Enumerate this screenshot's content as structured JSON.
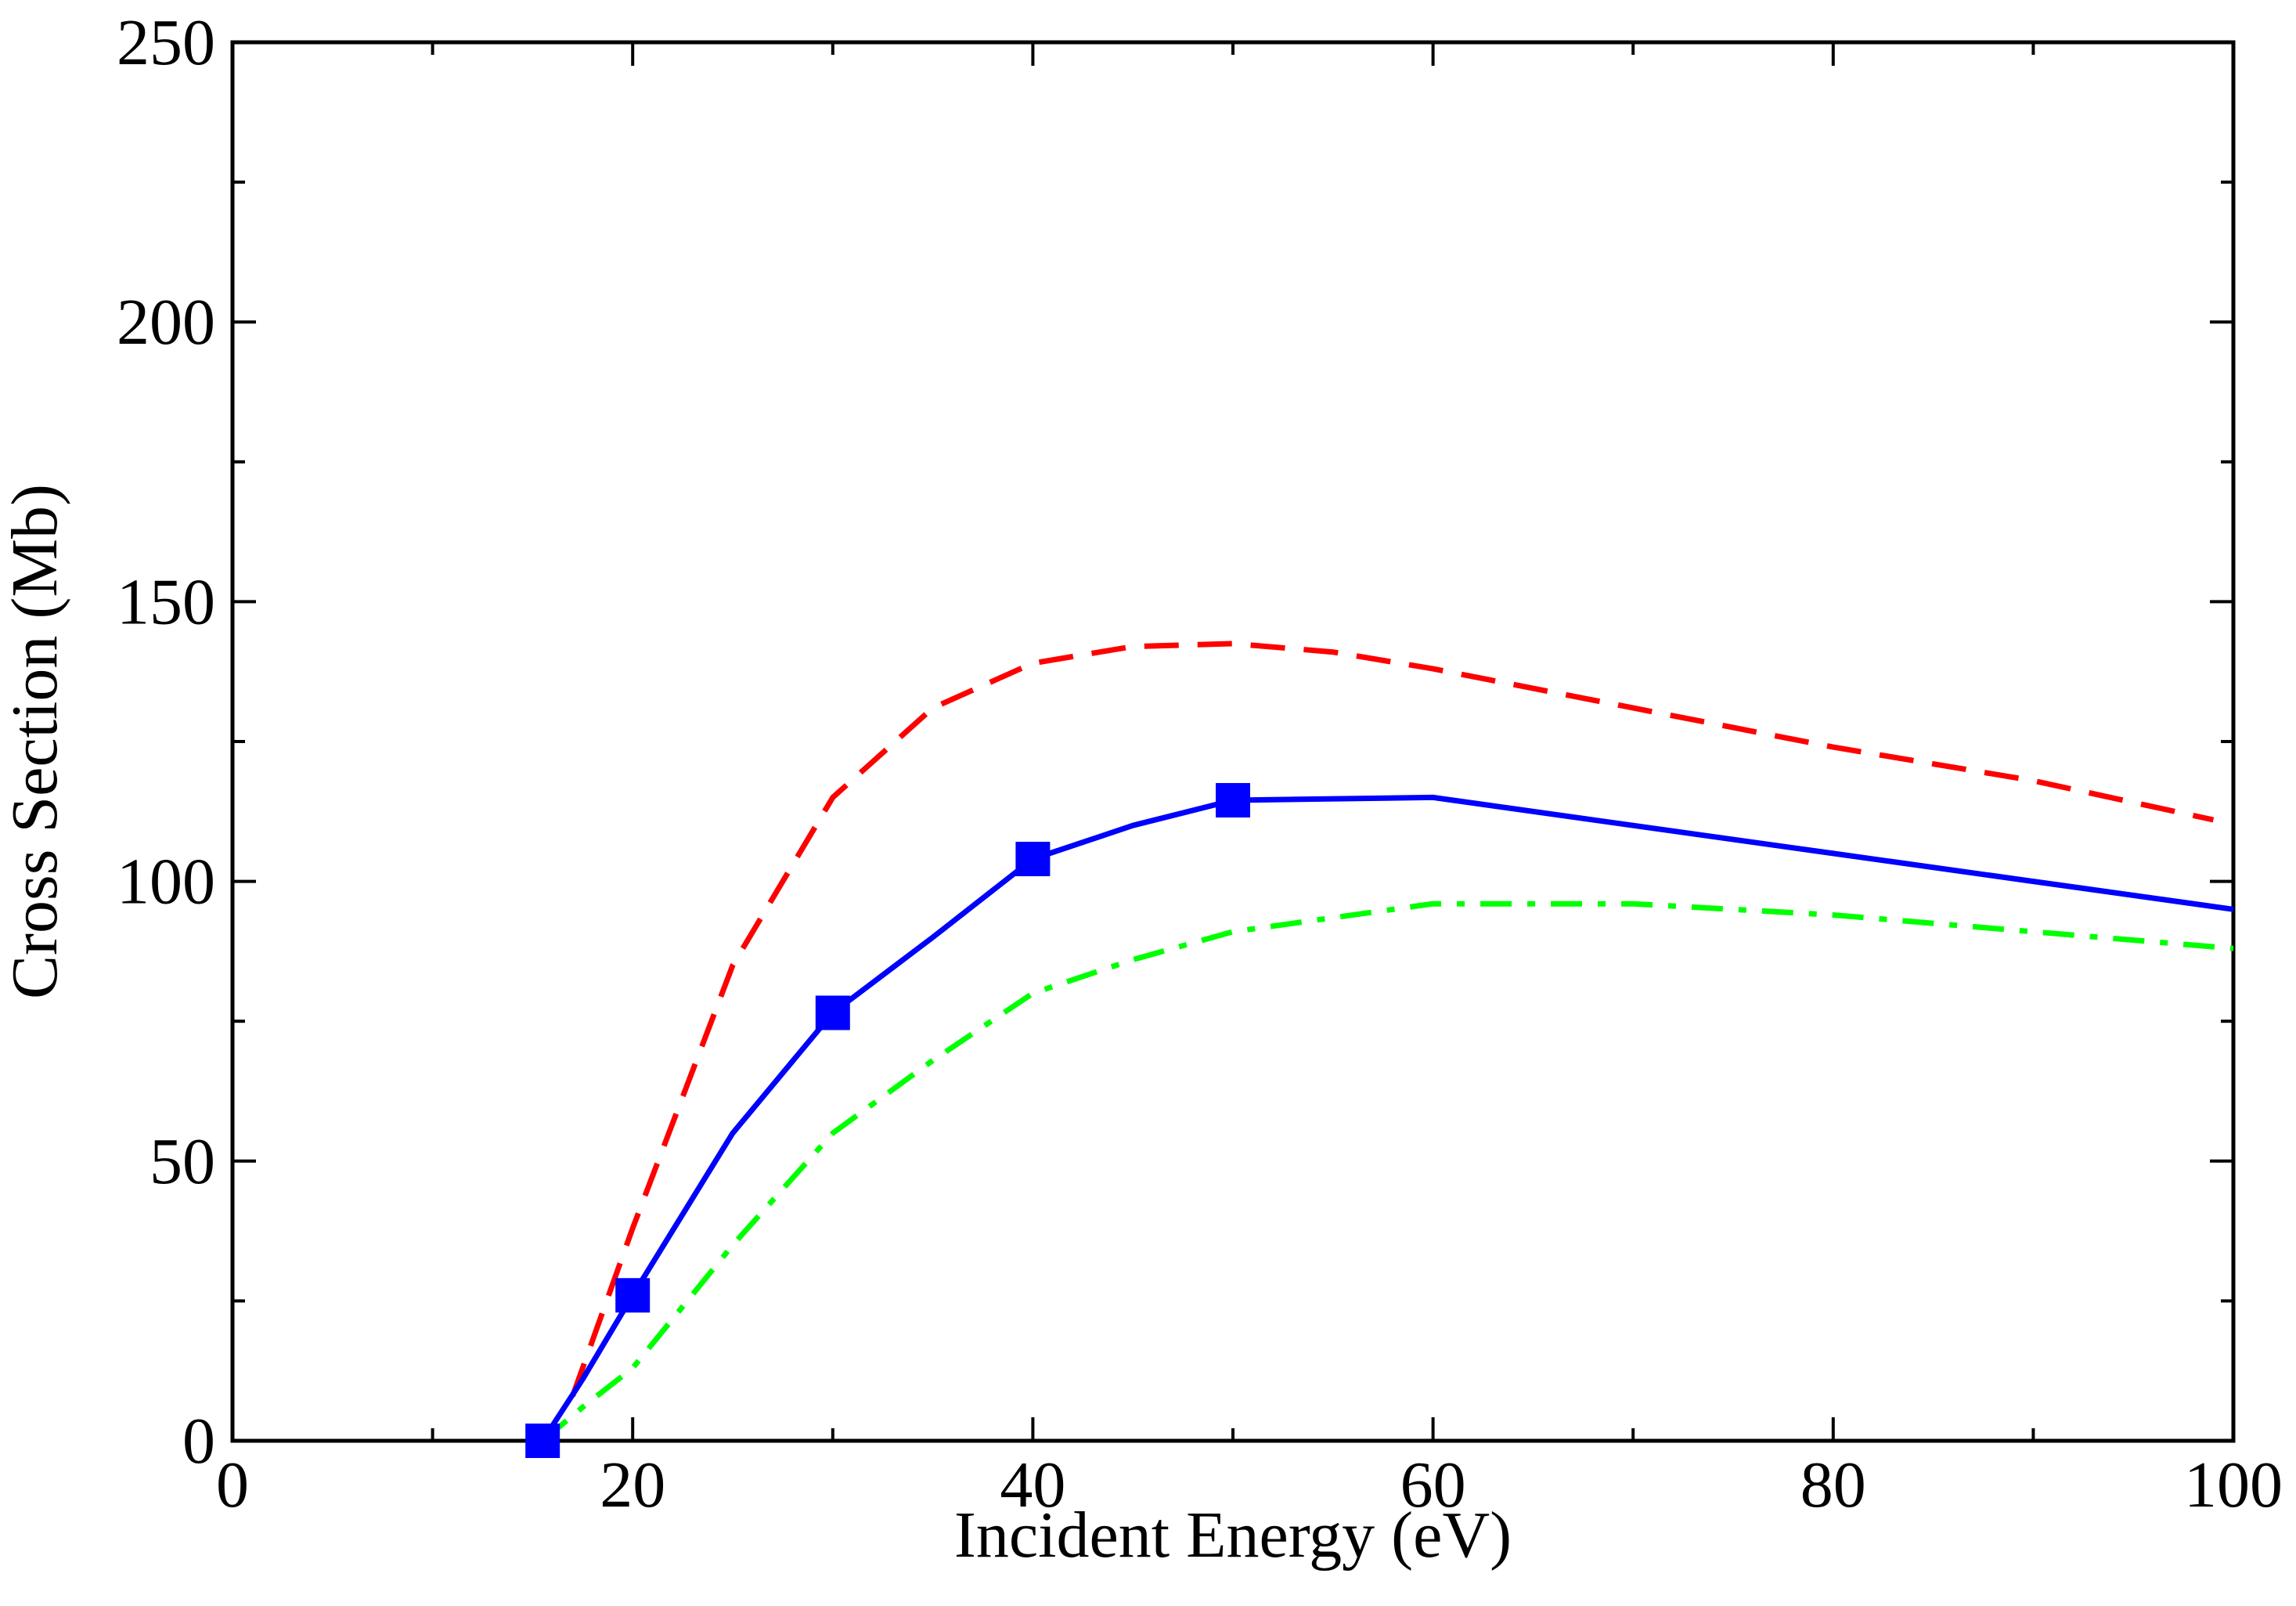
{
  "chart_data": {
    "type": "line",
    "title": "",
    "xlabel": "Incident Energy (eV)",
    "ylabel": "Cross Section (Mb)",
    "xlim": [
      0,
      100
    ],
    "ylim": [
      0,
      250
    ],
    "x_ticks": [
      0,
      20,
      40,
      60,
      80,
      100
    ],
    "y_ticks": [
      0,
      50,
      100,
      150,
      200,
      250
    ],
    "x_minor_step": 10,
    "y_minor_step": 25,
    "grid": false,
    "legend": "none",
    "series": [
      {
        "name": "red-dashed",
        "color": "#ff0000",
        "style": "dashed",
        "marker": "none",
        "x": [
          17,
          20,
          25,
          30,
          35,
          40,
          45,
          50,
          55,
          60,
          70,
          80,
          90,
          99
        ],
        "y": [
          8,
          38,
          85,
          115,
          131,
          139,
          142,
          142.5,
          141,
          138,
          131,
          124,
          118,
          111
        ]
      },
      {
        "name": "blue-solid",
        "color": "#0000ff",
        "style": "solid",
        "marker": "square",
        "x": [
          15.5,
          17.5,
          20,
          25,
          30,
          35,
          40,
          45,
          50,
          60,
          70,
          80,
          90,
          100
        ],
        "y": [
          0,
          11,
          26,
          55,
          76.5,
          90,
          104,
          110,
          114.5,
          115,
          110,
          105,
          100,
          95
        ]
      },
      {
        "name": "green-dash-dot",
        "color": "#00ff00",
        "style": "dashdot",
        "marker": "none",
        "x": [
          15.5,
          17.5,
          20,
          25,
          30,
          35,
          40,
          45,
          50,
          55,
          60,
          65,
          70,
          80,
          90,
          100
        ],
        "y": [
          0,
          6,
          13,
          35,
          55,
          68,
          80,
          86,
          91,
          93.5,
          96,
          96,
          96,
          94,
          91,
          88
        ]
      }
    ],
    "markers": {
      "series": "blue-solid",
      "x": [
        15.5,
        20,
        30,
        40,
        50
      ],
      "y": [
        0,
        26,
        76.5,
        104,
        114.5
      ]
    }
  }
}
